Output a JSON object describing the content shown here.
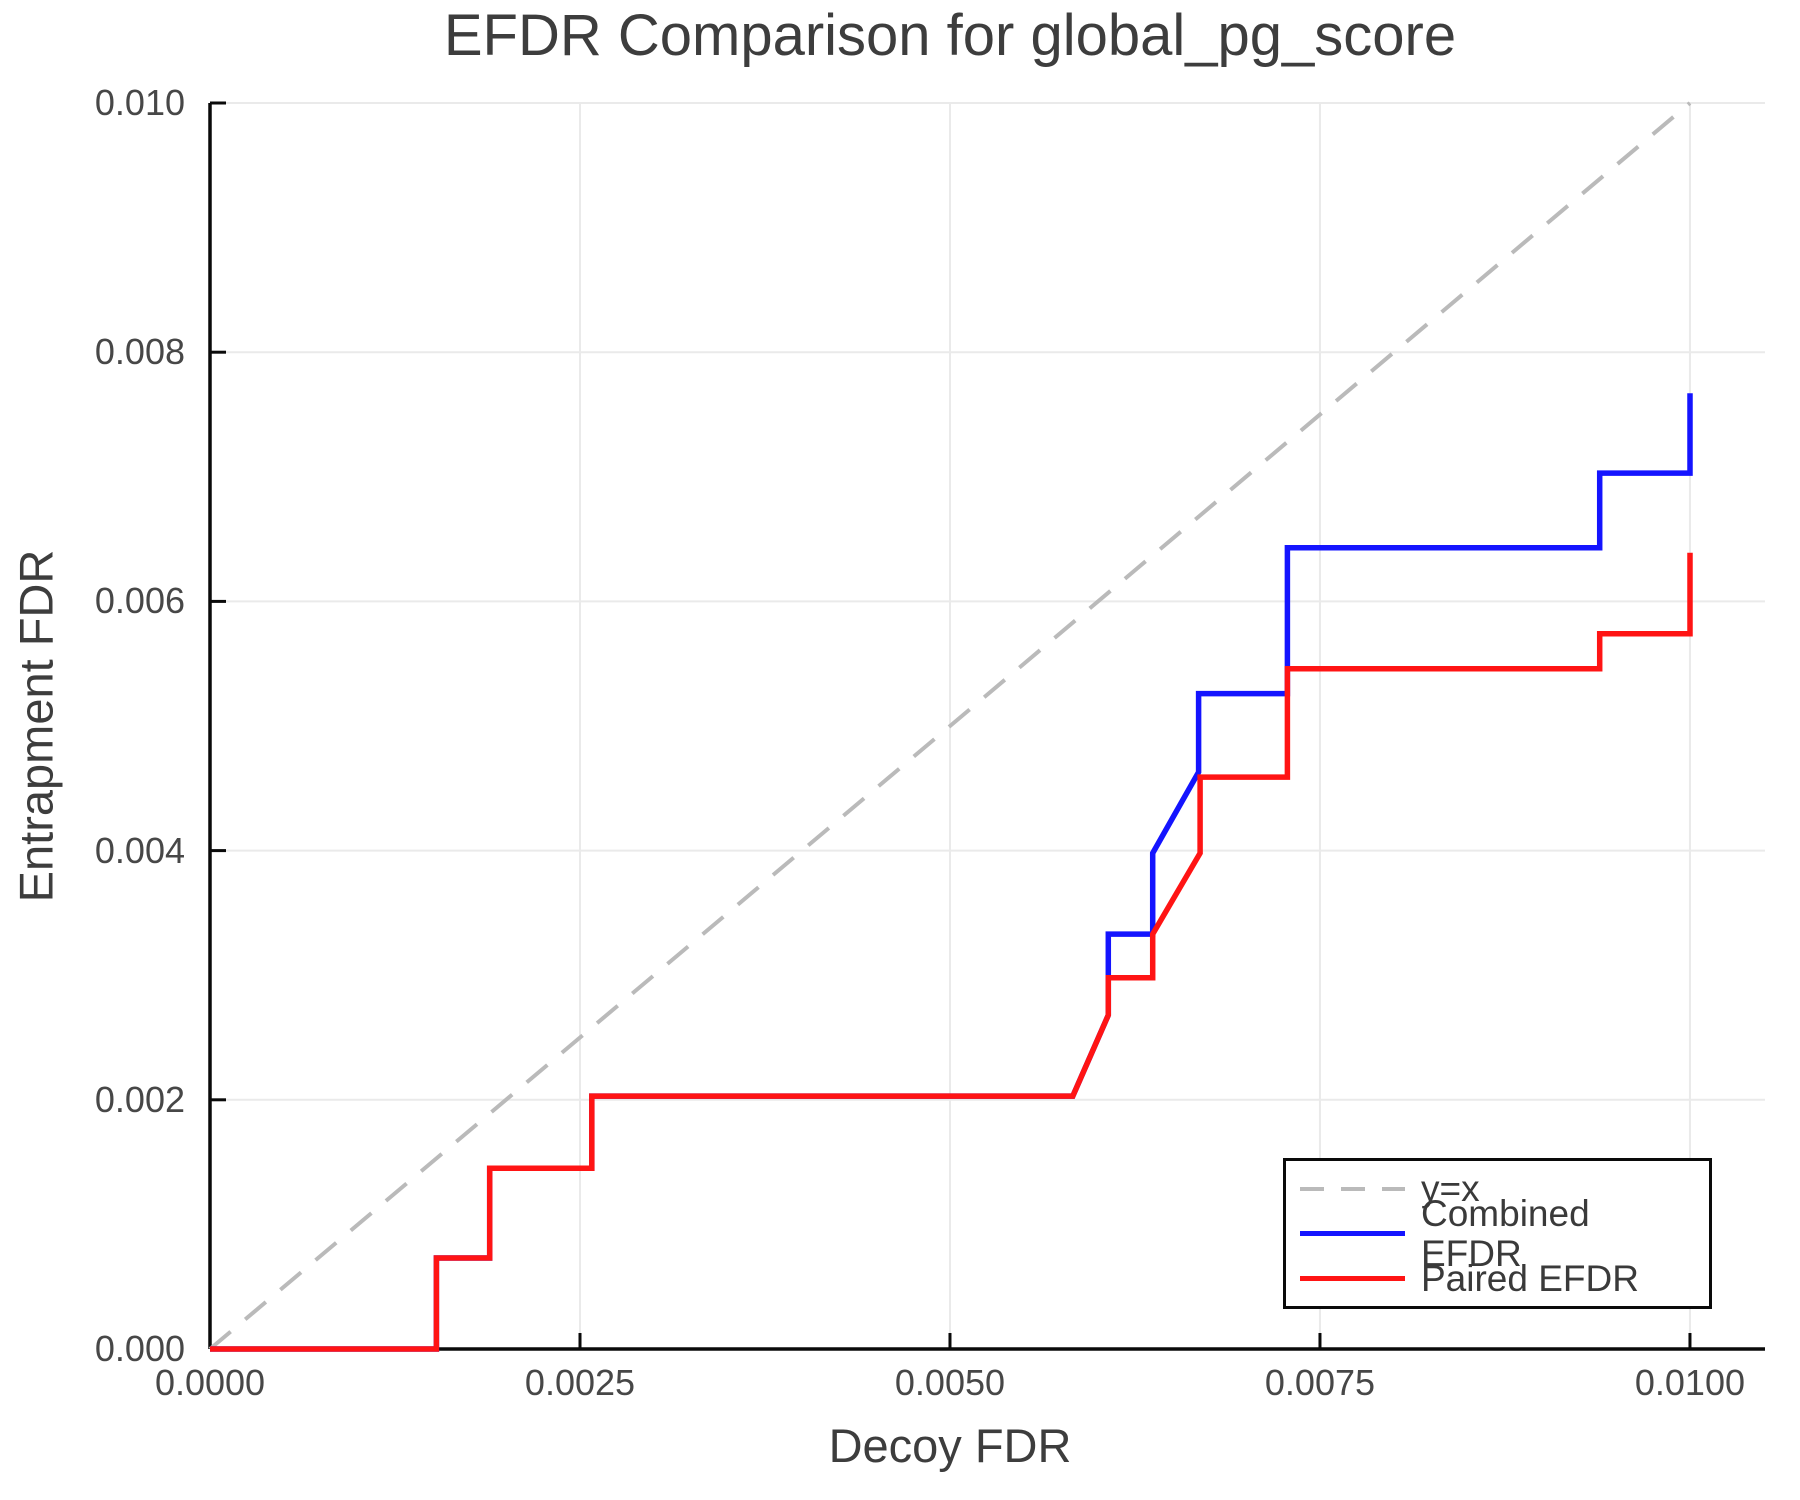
{
  "figure": {
    "title": "EFDR Comparison for global_pg_score",
    "xlabel": "Decoy FDR",
    "ylabel": "Entrapment FDR"
  },
  "legend": {
    "position": "lower right"
  },
  "chart_data": {
    "type": "line",
    "title": "EFDR Comparison for global_pg_score",
    "xlabel": "Decoy FDR",
    "ylabel": "Entrapment FDR",
    "xlim": [
      0.0,
      0.010507
    ],
    "ylim": [
      0.0,
      0.01
    ],
    "x_ticks": [
      0.0,
      0.0025,
      0.005,
      0.0075,
      0.01
    ],
    "x_tick_labels": [
      "0.0000",
      "0.0025",
      "0.0050",
      "0.0075",
      "0.0100"
    ],
    "y_ticks": [
      0.0,
      0.002,
      0.004,
      0.006,
      0.008,
      0.01
    ],
    "y_tick_labels": [
      "0.000",
      "0.002",
      "0.004",
      "0.006",
      "0.008",
      "0.010"
    ],
    "grid": true,
    "legend_position": "lower right",
    "style": {
      "grid_color": "#eaeaea",
      "spine_color": "#0a0a0a",
      "text_color": "#3d3d3d",
      "tick_text_color": "#474747",
      "background": "#ffffff"
    },
    "series": [
      {
        "name": "y=x",
        "color": "#bababa",
        "style": "dashed",
        "points": [
          [
            0.0,
            0.0
          ],
          [
            0.01,
            0.01
          ]
        ]
      },
      {
        "name": "Combined EFDR",
        "color": "#1414ff",
        "style": "solid",
        "points": [
          [
            0.0,
            0.0
          ],
          [
            0.00153,
            0.0
          ],
          [
            0.00153,
            0.00073
          ],
          [
            0.00189,
            0.00073
          ],
          [
            0.00189,
            0.00145
          ],
          [
            0.00258,
            0.00145
          ],
          [
            0.00258,
            0.00203
          ],
          [
            0.00583,
            0.00203
          ],
          [
            0.00607,
            0.00268
          ],
          [
            0.00607,
            0.00333
          ],
          [
            0.00637,
            0.00333
          ],
          [
            0.00637,
            0.00398
          ],
          [
            0.00668,
            0.00463
          ],
          [
            0.00668,
            0.00526
          ],
          [
            0.00728,
            0.00526
          ],
          [
            0.00728,
            0.00643
          ],
          [
            0.00939,
            0.00643
          ],
          [
            0.00939,
            0.00703
          ],
          [
            0.01,
            0.00703
          ],
          [
            0.01,
            0.00767
          ]
        ]
      },
      {
        "name": "Paired EFDR",
        "color": "#ff1414",
        "style": "solid",
        "points": [
          [
            0.0,
            0.0
          ],
          [
            0.00153,
            0.0
          ],
          [
            0.00153,
            0.00073
          ],
          [
            0.00189,
            0.00073
          ],
          [
            0.00189,
            0.00145
          ],
          [
            0.00258,
            0.00145
          ],
          [
            0.00258,
            0.00203
          ],
          [
            0.00583,
            0.00203
          ],
          [
            0.00607,
            0.00268
          ],
          [
            0.00607,
            0.00298
          ],
          [
            0.00637,
            0.00298
          ],
          [
            0.00637,
            0.00333
          ],
          [
            0.00669,
            0.00398
          ],
          [
            0.00669,
            0.00459
          ],
          [
            0.00728,
            0.00459
          ],
          [
            0.00728,
            0.00546
          ],
          [
            0.00939,
            0.00546
          ],
          [
            0.00939,
            0.00574
          ],
          [
            0.01,
            0.00574
          ],
          [
            0.01,
            0.00639
          ]
        ]
      }
    ]
  }
}
